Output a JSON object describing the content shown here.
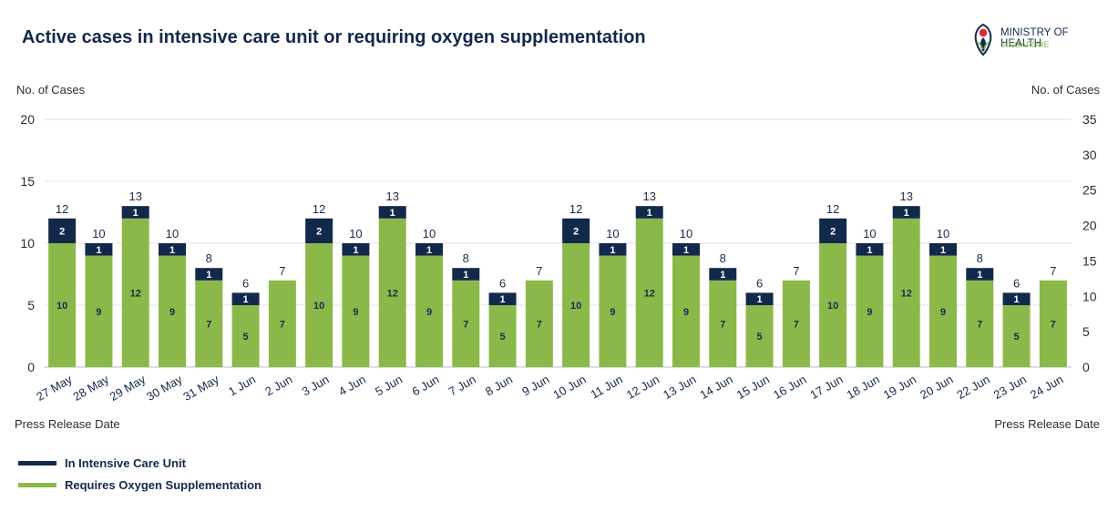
{
  "title": "Active cases in intensive care unit or requiring oxygen supplementation",
  "logo": {
    "line1": "MINISTRY OF HEALTH",
    "line2": "SINGAPORE"
  },
  "colors": {
    "icu": "#13294b",
    "oxygen": "#8ab94a",
    "grid": "#e0e0e0",
    "text": "#1b2a4a"
  },
  "chart_data": {
    "type": "bar",
    "stacked": true,
    "title": "Active cases in intensive care unit or requiring oxygen supplementation",
    "ylabel": "No. of Cases",
    "y2label": "No. of Cases",
    "xlabel": "Press Release Date",
    "ylim": [
      0,
      20
    ],
    "y2lim": [
      0,
      35
    ],
    "yticks": [
      0,
      5,
      10,
      15,
      20
    ],
    "y2ticks": [
      0,
      5,
      10,
      15,
      20,
      25,
      30,
      35
    ],
    "grid": true,
    "legend_position": "bottom-left",
    "categories": [
      "27 May",
      "28 May",
      "29 May",
      "30 May",
      "31 May",
      "1 Jun",
      "2 Jun",
      "3 Jun",
      "4 Jun",
      "5 Jun",
      "6 Jun",
      "7 Jun",
      "8 Jun",
      "9 Jun",
      "10 Jun",
      "11 Jun",
      "12 Jun",
      "13 Jun",
      "14 Jun",
      "15 Jun",
      "16 Jun",
      "17 Jun",
      "18 Jun",
      "19 Jun",
      "20 Jun",
      "22 Jun",
      "23 Jun",
      "24 Jun"
    ],
    "series": [
      {
        "name": "Requires Oxygen Supplementation",
        "values": [
          10,
          9,
          12,
          9,
          7,
          5,
          7,
          10,
          9,
          12,
          9,
          7,
          5,
          7,
          10,
          9,
          12,
          9,
          7,
          5,
          7,
          10,
          9,
          12,
          9,
          7,
          5,
          7
        ]
      },
      {
        "name": "In Intensive Care Unit",
        "values": [
          2,
          1,
          1,
          1,
          1,
          1,
          0,
          2,
          1,
          1,
          1,
          1,
          1,
          0,
          2,
          1,
          1,
          1,
          1,
          1,
          0,
          2,
          1,
          1,
          1,
          1,
          1,
          0
        ]
      }
    ],
    "totals": [
      12,
      10,
      13,
      10,
      8,
      6,
      7,
      12,
      10,
      13,
      10,
      8,
      6,
      7,
      12,
      10,
      13,
      10,
      8,
      6,
      7,
      12,
      10,
      13,
      10,
      8,
      6,
      7
    ]
  },
  "legend": [
    {
      "label": "In Intensive Care Unit",
      "color": "#13294b"
    },
    {
      "label": "Requires Oxygen Supplementation",
      "color": "#8ab94a"
    }
  ]
}
